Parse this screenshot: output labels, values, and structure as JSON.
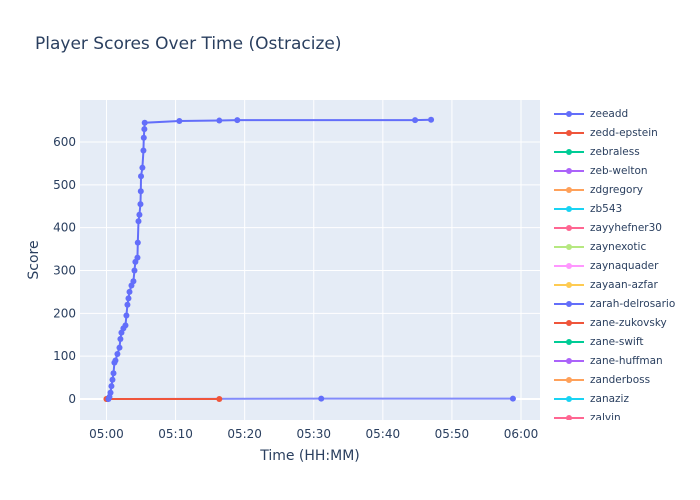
{
  "chart_data": {
    "type": "line",
    "title": "Player Scores Over Time (Ostracize)",
    "xlabel": "Time (HH:MM)",
    "ylabel": "Score",
    "xlim": [
      "04:56:10",
      "06:02:45"
    ],
    "ylim": [
      -49,
      698
    ],
    "x_ticks": [
      "05:00",
      "05:10",
      "05:20",
      "05:30",
      "05:40",
      "05:50",
      "06:00"
    ],
    "y_ticks": [
      0,
      100,
      200,
      300,
      400,
      500,
      600
    ],
    "grid": true,
    "legend_placement": "right",
    "series": [
      {
        "name": "zeeadd",
        "color": "#636efa",
        "points": [
          [
            "05:00:17",
            0
          ],
          [
            "05:00:26",
            5
          ],
          [
            "05:00:35",
            15
          ],
          [
            "05:00:43",
            30
          ],
          [
            "05:00:52",
            45
          ],
          [
            "05:01:01",
            60
          ],
          [
            "05:01:09",
            85
          ],
          [
            "05:01:18",
            90
          ],
          [
            "05:01:35",
            105
          ],
          [
            "05:01:53",
            120
          ],
          [
            "05:02:01",
            140
          ],
          [
            "05:02:10",
            155
          ],
          [
            "05:02:27",
            165
          ],
          [
            "05:02:45",
            172
          ],
          [
            "05:02:53",
            195
          ],
          [
            "05:03:02",
            220
          ],
          [
            "05:03:11",
            235
          ],
          [
            "05:03:20",
            250
          ],
          [
            "05:03:37",
            265
          ],
          [
            "05:03:54",
            275
          ],
          [
            "05:04:03",
            300
          ],
          [
            "05:04:11",
            320
          ],
          [
            "05:04:29",
            330
          ],
          [
            "05:04:32",
            365
          ],
          [
            "05:04:38",
            415
          ],
          [
            "05:04:46",
            430
          ],
          [
            "05:04:55",
            455
          ],
          [
            "05:04:58",
            485
          ],
          [
            "05:05:00",
            520
          ],
          [
            "05:05:12",
            540
          ],
          [
            "05:05:21",
            580
          ],
          [
            "05:05:24",
            610
          ],
          [
            "05:05:29",
            630
          ],
          [
            "05:05:32",
            645
          ],
          [
            "05:10:33",
            649
          ],
          [
            "05:16:20",
            650
          ],
          [
            "05:18:56",
            651
          ],
          [
            "05:44:40",
            651
          ],
          [
            "05:46:59",
            652
          ]
        ]
      },
      {
        "name": "zedd-epstein",
        "color": "#ef553b",
        "points": [
          [
            "05:00:00",
            0
          ],
          [
            "05:16:20",
            0
          ]
        ]
      },
      {
        "name": "zebraless",
        "color": "#00cc96",
        "points": []
      },
      {
        "name": "zeb-welton",
        "color": "#ab63fa",
        "points": []
      },
      {
        "name": "zdgregory",
        "color": "#ffa15a",
        "points": []
      },
      {
        "name": "zb543",
        "color": "#19d3f3",
        "points": []
      },
      {
        "name": "zayyhefner30",
        "color": "#ff6692",
        "points": []
      },
      {
        "name": "zaynexotic",
        "color": "#b6e880",
        "points": []
      },
      {
        "name": "zaynaquader",
        "color": "#ff97ff",
        "points": []
      },
      {
        "name": "zayaan-azfar",
        "color": "#fecb52",
        "points": [
          [
            "05:00:00",
            0
          ]
        ]
      },
      {
        "name": "zarah-delrosario",
        "color": "#636efa",
        "points": [
          [
            "05:00:10",
            0
          ],
          [
            "05:31:05",
            1
          ],
          [
            "05:58:50",
            1
          ]
        ]
      },
      {
        "name": "zane-zukovsky",
        "color": "#ef553b",
        "points": []
      },
      {
        "name": "zane-swift",
        "color": "#00cc96",
        "points": []
      },
      {
        "name": "zane-huffman",
        "color": "#ab63fa",
        "points": []
      },
      {
        "name": "zanderboss",
        "color": "#ffa15a",
        "points": []
      },
      {
        "name": "zanaziz",
        "color": "#19d3f3",
        "points": []
      },
      {
        "name": "zalvin",
        "color": "#ff6692",
        "points": []
      }
    ]
  }
}
